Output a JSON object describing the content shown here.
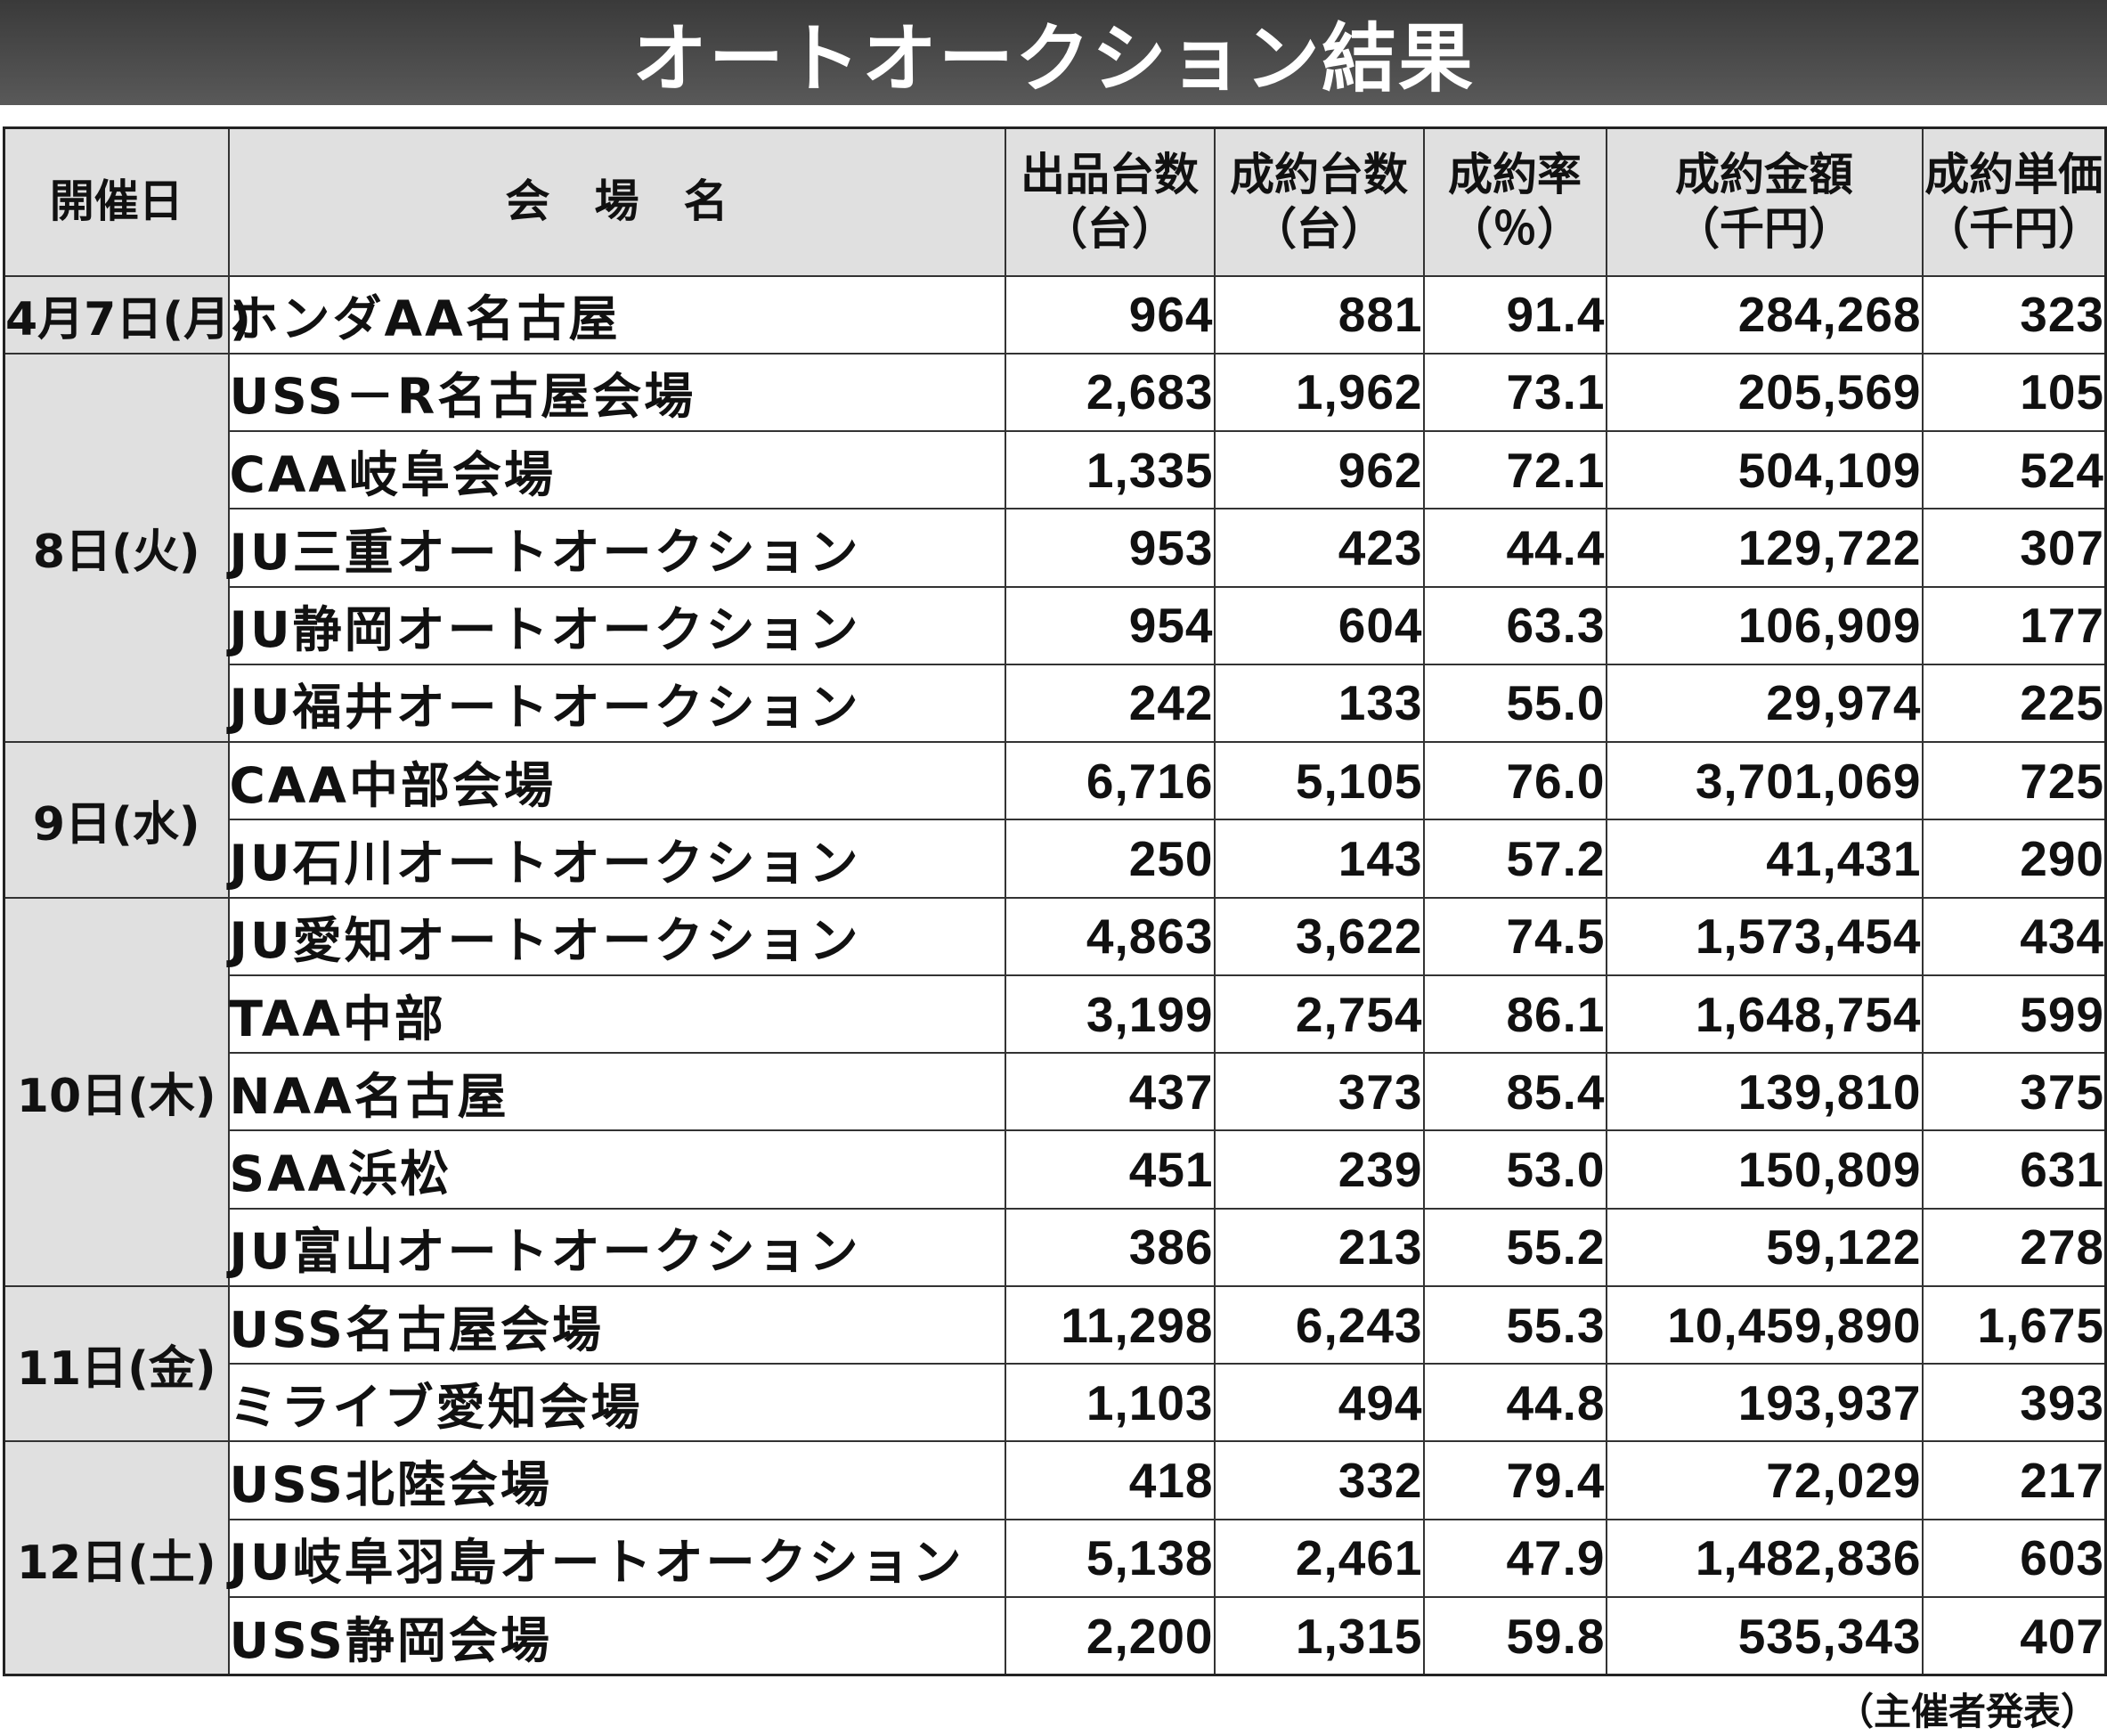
{
  "title": "オートオークション結果",
  "headers": {
    "date": "開催日",
    "venue": "会　場　名",
    "listed": [
      "出品台数",
      "（台）"
    ],
    "sold": [
      "成約台数",
      "（台）"
    ],
    "rate": [
      "成約率",
      "（％）"
    ],
    "amount": [
      "成約金額",
      "（千円）"
    ],
    "unit_price": [
      "成約単価",
      "（千円）"
    ]
  },
  "rows": [
    {
      "date": "4月7日(月)",
      "venue": "ホンダAA名古屋",
      "listed": "964",
      "sold": "881",
      "rate": "91.4",
      "amount": "284,268",
      "unit_price": "323"
    },
    {
      "date": "8日(火)",
      "venue": "USS－R名古屋会場",
      "listed": "2,683",
      "sold": "1,962",
      "rate": "73.1",
      "amount": "205,569",
      "unit_price": "105"
    },
    {
      "date": "",
      "venue": "CAA岐阜会場",
      "listed": "1,335",
      "sold": "962",
      "rate": "72.1",
      "amount": "504,109",
      "unit_price": "524"
    },
    {
      "date": "",
      "venue": "JU三重オートオークション",
      "listed": "953",
      "sold": "423",
      "rate": "44.4",
      "amount": "129,722",
      "unit_price": "307"
    },
    {
      "date": "",
      "venue": "JU静岡オートオークション",
      "listed": "954",
      "sold": "604",
      "rate": "63.3",
      "amount": "106,909",
      "unit_price": "177"
    },
    {
      "date": "",
      "venue": "JU福井オートオークション",
      "listed": "242",
      "sold": "133",
      "rate": "55.0",
      "amount": "29,974",
      "unit_price": "225"
    },
    {
      "date": "9日(水)",
      "venue": "CAA中部会場",
      "listed": "6,716",
      "sold": "5,105",
      "rate": "76.0",
      "amount": "3,701,069",
      "unit_price": "725"
    },
    {
      "date": "",
      "venue": "JU石川オートオークション",
      "listed": "250",
      "sold": "143",
      "rate": "57.2",
      "amount": "41,431",
      "unit_price": "290"
    },
    {
      "date": "10日(木)",
      "venue": "JU愛知オートオークション",
      "listed": "4,863",
      "sold": "3,622",
      "rate": "74.5",
      "amount": "1,573,454",
      "unit_price": "434"
    },
    {
      "date": "",
      "venue": "TAA中部",
      "listed": "3,199",
      "sold": "2,754",
      "rate": "86.1",
      "amount": "1,648,754",
      "unit_price": "599"
    },
    {
      "date": "",
      "venue": "NAA名古屋",
      "listed": "437",
      "sold": "373",
      "rate": "85.4",
      "amount": "139,810",
      "unit_price": "375"
    },
    {
      "date": "",
      "venue": "SAA浜松",
      "listed": "451",
      "sold": "239",
      "rate": "53.0",
      "amount": "150,809",
      "unit_price": "631"
    },
    {
      "date": "",
      "venue": "JU富山オートオークション",
      "listed": "386",
      "sold": "213",
      "rate": "55.2",
      "amount": "59,122",
      "unit_price": "278"
    },
    {
      "date": "11日(金)",
      "venue": "USS名古屋会場",
      "listed": "11,298",
      "sold": "6,243",
      "rate": "55.3",
      "amount": "10,459,890",
      "unit_price": "1,675"
    },
    {
      "date": "",
      "venue": "ミライブ愛知会場",
      "listed": "1,103",
      "sold": "494",
      "rate": "44.8",
      "amount": "193,937",
      "unit_price": "393"
    },
    {
      "date": "12日(土)",
      "venue": "USS北陸会場",
      "listed": "418",
      "sold": "332",
      "rate": "79.4",
      "amount": "72,029",
      "unit_price": "217"
    },
    {
      "date": "",
      "venue": "JU岐阜羽島オートオークション",
      "listed": "5,138",
      "sold": "2,461",
      "rate": "47.9",
      "amount": "1,482,836",
      "unit_price": "603"
    },
    {
      "date": "",
      "venue": "USS静岡会場",
      "listed": "2,200",
      "sold": "1,315",
      "rate": "59.8",
      "amount": "535,343",
      "unit_price": "407"
    }
  ],
  "source_note": "（主催者発表）"
}
